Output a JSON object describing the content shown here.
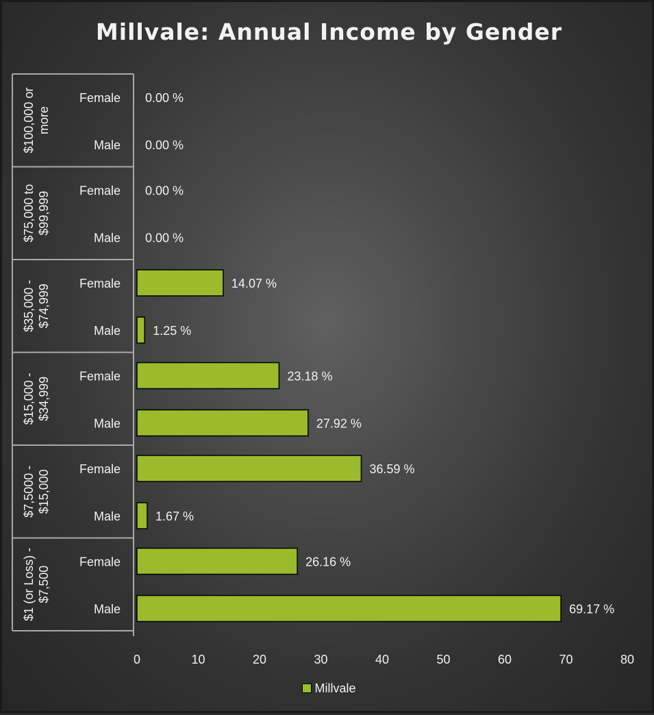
{
  "chart_data": {
    "type": "bar",
    "orientation": "horizontal",
    "title": "Millvale: Annual Income by Gender",
    "groups": [
      {
        "label": "$100,000 or more",
        "label_lines": [
          "$100,000 or",
          "more"
        ],
        "categories": [
          "Female",
          "Male"
        ],
        "values": [
          0.0,
          0.0
        ],
        "value_labels": [
          "0.00 %",
          "0.00 %"
        ]
      },
      {
        "label": "$75,000 to $99,999",
        "label_lines": [
          "$75,000 to",
          "$99,999"
        ],
        "categories": [
          "Female",
          "Male"
        ],
        "values": [
          0.0,
          0.0
        ],
        "value_labels": [
          "0.00 %",
          "0.00 %"
        ]
      },
      {
        "label": "$35,000 - $74,999",
        "label_lines": [
          "$35,000 -",
          "$74,999"
        ],
        "categories": [
          "Female",
          "Male"
        ],
        "values": [
          14.07,
          1.25
        ],
        "value_labels": [
          "14.07 %",
          "1.25 %"
        ]
      },
      {
        "label": "$15,000 - $34,999",
        "label_lines": [
          "$15,000 -",
          "$34,999"
        ],
        "categories": [
          "Female",
          "Male"
        ],
        "values": [
          23.18,
          27.92
        ],
        "value_labels": [
          "23.18 %",
          "27.92 %"
        ]
      },
      {
        "label": "$7,5000 - $15,000",
        "label_lines": [
          "$7,5000 -",
          "$15,000"
        ],
        "categories": [
          "Female",
          "Male"
        ],
        "values": [
          36.59,
          1.67
        ],
        "value_labels": [
          "36.59 %",
          "1.67 %"
        ]
      },
      {
        "label": "$1 (or Loss) - $7,500",
        "label_lines": [
          "$1 (or Loss) -",
          "$7,500"
        ],
        "categories": [
          "Female",
          "Male"
        ],
        "values": [
          26.16,
          69.17
        ],
        "value_labels": [
          "26.16 %",
          "69.17 %"
        ]
      }
    ],
    "series": [
      {
        "name": "Millvale",
        "color": "#9bbb2c"
      }
    ],
    "xlim": [
      0,
      80
    ],
    "xticks": [
      "0",
      "10",
      "20",
      "30",
      "40",
      "50",
      "60",
      "70",
      "80"
    ],
    "grid": false,
    "legend_position": "bottom"
  }
}
